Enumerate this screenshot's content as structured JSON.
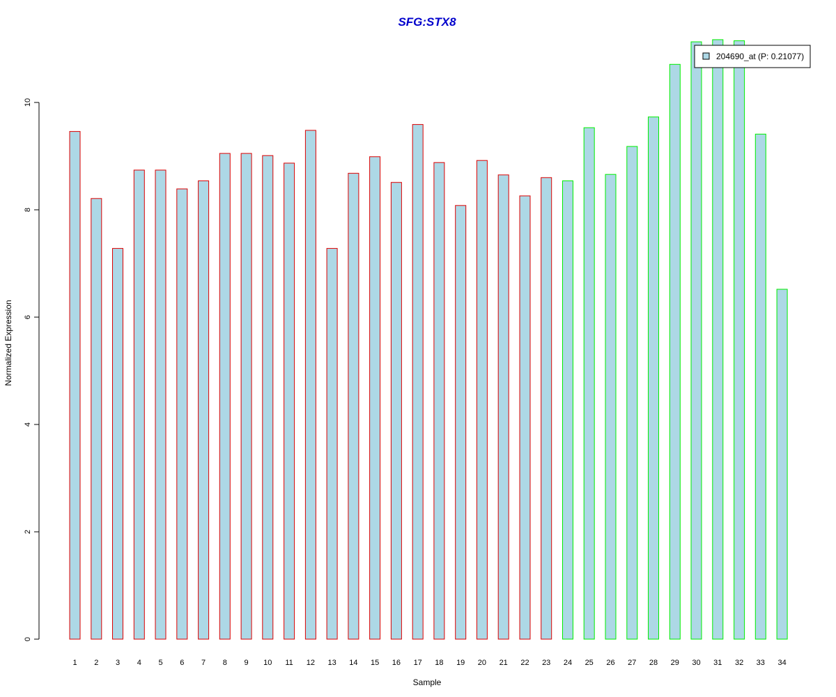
{
  "chart_data": {
    "type": "bar",
    "title": "SFG:STX8",
    "xlabel": "Sample",
    "ylabel": "Normalized Expression",
    "ylim": [
      0,
      11.2
    ],
    "yticks": [
      "0",
      "2",
      "4",
      "6",
      "8",
      "10"
    ],
    "grid": false,
    "legend_position": "top-right",
    "categories": [
      "1",
      "2",
      "3",
      "4",
      "5",
      "6",
      "7",
      "8",
      "9",
      "10",
      "11",
      "12",
      "13",
      "14",
      "15",
      "16",
      "17",
      "18",
      "19",
      "20",
      "21",
      "22",
      "23",
      "24",
      "25",
      "26",
      "27",
      "28",
      "29",
      "30",
      "31",
      "32",
      "33",
      "34"
    ],
    "series": [
      {
        "name": "204690_at (P: 0.21077)",
        "values": [
          9.46,
          8.21,
          7.28,
          8.74,
          8.74,
          8.39,
          8.54,
          9.05,
          9.05,
          9.01,
          8.87,
          9.48,
          7.28,
          8.68,
          8.99,
          8.51,
          9.59,
          8.88,
          8.08,
          8.92,
          8.65,
          8.26,
          8.6,
          8.54,
          9.53,
          8.66,
          9.18,
          9.73,
          10.71,
          11.13,
          11.17,
          11.15,
          9.41,
          6.52
        ],
        "group": [
          "a",
          "a",
          "a",
          "a",
          "a",
          "a",
          "a",
          "a",
          "a",
          "a",
          "a",
          "a",
          "a",
          "a",
          "a",
          "a",
          "a",
          "a",
          "a",
          "a",
          "a",
          "a",
          "a",
          "b",
          "b",
          "b",
          "b",
          "b",
          "b",
          "b",
          "b",
          "b",
          "b",
          "b"
        ]
      }
    ],
    "colors": {
      "fill": "#add8e6",
      "border_group_a": "#dd0000",
      "border_group_b": "#00ee00",
      "title": "#0000cc"
    }
  }
}
